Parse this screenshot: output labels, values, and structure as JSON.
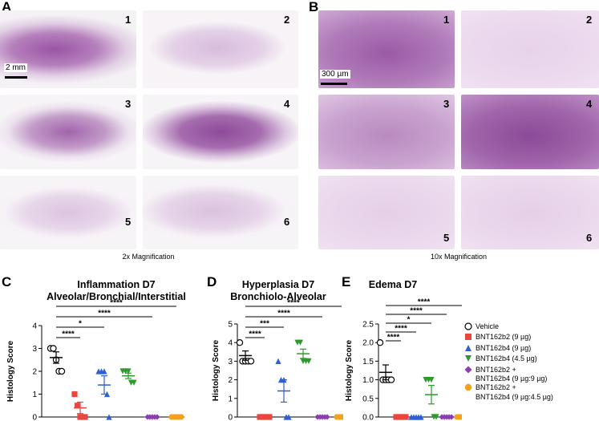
{
  "panels": {
    "A": {
      "letter": "A",
      "caption": "2x Magnification",
      "scale_label": "2 mm",
      "tile_numbers": [
        "1",
        "2",
        "3",
        "4",
        "5",
        "6"
      ]
    },
    "B": {
      "letter": "B",
      "caption": "10x Magnification",
      "scale_label": "300 µm",
      "tile_numbers": [
        "1",
        "2",
        "3",
        "4",
        "5",
        "6"
      ]
    },
    "C": {
      "letter": "C"
    },
    "D": {
      "letter": "D"
    },
    "E": {
      "letter": "E"
    }
  },
  "colors": {
    "tissue_dense": "#8e4a9a",
    "tissue_light": "#e7d5ea",
    "background": "#f4f0f4",
    "vehicle": "#000000",
    "bnt162b2": "#e8463f",
    "bnt162b4_9": "#2d5fd6",
    "bnt162b4_45": "#2c9a2c",
    "combo_9_9": "#8b3fb0",
    "combo_9_45": "#f3a11c"
  },
  "legend": [
    {
      "label": "Vehicle",
      "marker": "circle-open",
      "color": "#000000"
    },
    {
      "label": "BNT162b2 (9 µg)",
      "marker": "square",
      "color": "#e8463f"
    },
    {
      "label": "BNT162b4 (9 µg)",
      "marker": "triangle-up",
      "color": "#2d5fd6"
    },
    {
      "label": "BNT162b4 (4.5 µg)",
      "marker": "triangle-down",
      "color": "#2c9a2c"
    },
    {
      "label": "BNT162b2 +",
      "label2": "BNT162b4 (9 µg:9 µg)",
      "marker": "diamond",
      "color": "#8b3fb0"
    },
    {
      "label": "BNT162b2 +",
      "label2": "BNT162b4 (9 µg:4.5 µg)",
      "marker": "circle",
      "color": "#f3a11c"
    }
  ],
  "chart_data": [
    {
      "panel": "C",
      "type": "scatter",
      "title": "Inflammation D7",
      "subtitle": "Alveolar/Bronchial/Interstitial",
      "ylabel": "Histology Score",
      "ylim": [
        0,
        4
      ],
      "yticks": [
        "0",
        "1",
        "2",
        "3",
        "4"
      ],
      "series": [
        {
          "name": "Vehicle",
          "values": [
            3,
            3,
            2.5,
            2,
            2
          ],
          "mean": 2.6,
          "sem": 0.25
        },
        {
          "name": "BNT162b2 (9 µg)",
          "values": [
            1,
            0.5,
            0,
            0,
            0
          ],
          "mean": 0.4,
          "sem": 0.25
        },
        {
          "name": "BNT162b4 (9 µg)",
          "values": [
            2,
            2,
            2,
            1,
            0
          ],
          "mean": 1.4,
          "sem": 0.4
        },
        {
          "name": "BNT162b4 (4.5 µg)",
          "values": [
            2,
            2,
            2,
            1.5,
            1.5
          ],
          "mean": 1.8,
          "sem": 0.12
        },
        {
          "name": "BNT162b2 + BNT162b4 (9 µg:9 µg)",
          "values": [
            0,
            0,
            0,
            0,
            0
          ],
          "mean": 0,
          "sem": 0
        },
        {
          "name": "BNT162b2 + BNT162b4 (9 µg:4.5 µg)",
          "values": [
            0,
            0,
            0,
            0,
            0
          ],
          "mean": 0,
          "sem": 0
        }
      ],
      "significance": [
        {
          "from": 0,
          "to": 5,
          "label": "****"
        },
        {
          "from": 0,
          "to": 4,
          "label": "****"
        },
        {
          "from": 0,
          "to": 2,
          "label": "*"
        },
        {
          "from": 0,
          "to": 1,
          "label": "****"
        }
      ]
    },
    {
      "panel": "D",
      "type": "scatter",
      "title": "Hyperplasia D7",
      "subtitle": "Bronchiolo-Alveolar",
      "ylabel": "Histology Score",
      "ylim": [
        0,
        5
      ],
      "yticks": [
        "0",
        "1",
        "2",
        "3",
        "4",
        "5"
      ],
      "series": [
        {
          "name": "Vehicle",
          "values": [
            4,
            3,
            3,
            3,
            3
          ],
          "mean": 3.3,
          "sem": 0.25
        },
        {
          "name": "BNT162b2 (9 µg)",
          "values": [
            0,
            0,
            0,
            0,
            0
          ],
          "mean": 0,
          "sem": 0
        },
        {
          "name": "BNT162b4 (9 µg)",
          "values": [
            3,
            2,
            2,
            0,
            0
          ],
          "mean": 1.4,
          "sem": 0.6
        },
        {
          "name": "BNT162b4 (4.5 µg)",
          "values": [
            4,
            4,
            3,
            3,
            3
          ],
          "mean": 3.4,
          "sem": 0.25
        },
        {
          "name": "BNT162b2 + BNT162b4 (9 µg:9 µg)",
          "values": [
            0,
            0,
            0,
            0,
            0
          ],
          "mean": 0,
          "sem": 0
        },
        {
          "name": "BNT162b2 + BNT162b4 (9 µg:4.5 µg)",
          "values": [
            0,
            0,
            0,
            0,
            0
          ],
          "mean": 0,
          "sem": 0
        }
      ],
      "significance": [
        {
          "from": 0,
          "to": 5,
          "label": "****"
        },
        {
          "from": 0,
          "to": 4,
          "label": "****"
        },
        {
          "from": 0,
          "to": 2,
          "label": "***"
        },
        {
          "from": 0,
          "to": 1,
          "label": "****"
        }
      ]
    },
    {
      "panel": "E",
      "type": "scatter",
      "title": "Edema D7",
      "subtitle": "",
      "ylabel": "Histology Score",
      "ylim": [
        0,
        2.5
      ],
      "yticks": [
        "0.0",
        "0.5",
        "1.0",
        "1.5",
        "2.0",
        "2.5"
      ],
      "series": [
        {
          "name": "Vehicle",
          "values": [
            2,
            1,
            1,
            1,
            1
          ],
          "mean": 1.2,
          "sem": 0.2
        },
        {
          "name": "BNT162b2 (9 µg)",
          "values": [
            0,
            0,
            0,
            0,
            0
          ],
          "mean": 0,
          "sem": 0
        },
        {
          "name": "BNT162b4 (9 µg)",
          "values": [
            0,
            0,
            0,
            0,
            0
          ],
          "mean": 0,
          "sem": 0
        },
        {
          "name": "BNT162b4 (4.5 µg)",
          "values": [
            1,
            1,
            1,
            0,
            0
          ],
          "mean": 0.6,
          "sem": 0.25
        },
        {
          "name": "BNT162b2 + BNT162b4 (9 µg:9 µg)",
          "values": [
            0,
            0,
            0,
            0,
            0
          ],
          "mean": 0,
          "sem": 0
        },
        {
          "name": "BNT162b2 + BNT162b4 (9 µg:4.5 µg)",
          "values": [
            0,
            0,
            0,
            0,
            0
          ],
          "mean": 0,
          "sem": 0
        }
      ],
      "significance": [
        {
          "from": 0,
          "to": 5,
          "label": "****"
        },
        {
          "from": 0,
          "to": 4,
          "label": "****"
        },
        {
          "from": 0,
          "to": 3,
          "label": "*"
        },
        {
          "from": 0,
          "to": 2,
          "label": "****"
        },
        {
          "from": 0,
          "to": 1,
          "label": "****"
        }
      ]
    }
  ]
}
